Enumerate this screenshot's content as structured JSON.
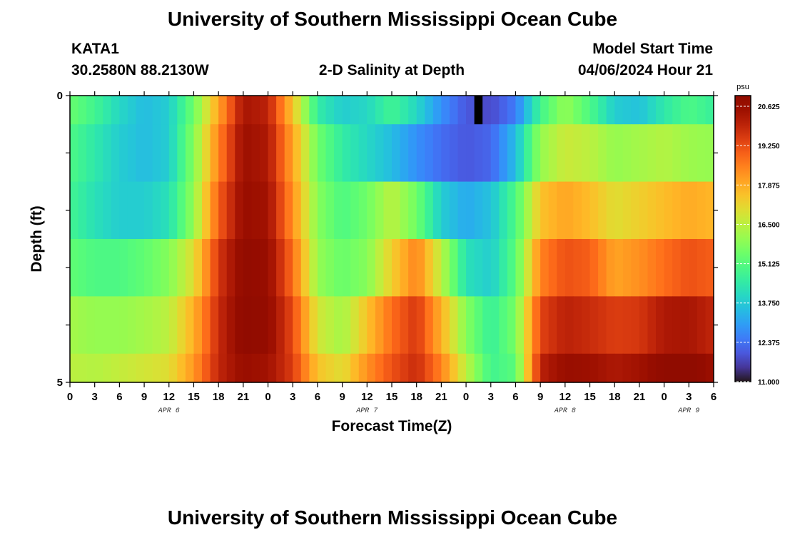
{
  "header": {
    "title": "University of Southern Mississippi Ocean Cube",
    "station": "KATA1",
    "coords": "30.2580N  88.2130W",
    "subtitle": "2-D Salinity at Depth",
    "model_start_label": "Model Start Time",
    "model_start_value": "04/06/2024 Hour 21",
    "footer_title": "University of Southern Mississippi Ocean Cube"
  },
  "chart_data": {
    "type": "heatmap",
    "title": "2-D Salinity at Depth",
    "xlabel": "Forecast Time(Z)",
    "ylabel": "Depth (ft)",
    "x_range": [
      "04/06 00Z",
      "04/09 06Z"
    ],
    "x_ticks": [
      "0",
      "3",
      "6",
      "9",
      "12",
      "15",
      "18",
      "21",
      "0",
      "3",
      "6",
      "9",
      "12",
      "15",
      "18",
      "21",
      "0",
      "3",
      "6",
      "9",
      "12",
      "15",
      "18",
      "21",
      "0",
      "3",
      "6"
    ],
    "date_labels": [
      {
        "label": "APR 6",
        "at_hour": 12
      },
      {
        "label": "APR 7",
        "at_hour": 36
      },
      {
        "label": "APR 8",
        "at_hour": 60
      },
      {
        "label": "APR 9",
        "at_hour": 75
      }
    ],
    "y_range": [
      0,
      5
    ],
    "y_tick_labels": [
      "0",
      "5"
    ],
    "y_minor_ticks": [
      0,
      1,
      2,
      3,
      4,
      5
    ],
    "depth_layers": [
      0,
      1,
      2,
      3,
      4,
      5
    ],
    "colorbar": {
      "unit": "psu",
      "range": [
        11.0,
        21.0
      ],
      "ticks": [
        "20.625",
        "19.250",
        "17.875",
        "16.500",
        "15.125",
        "13.750",
        "12.375",
        "11.000"
      ],
      "colormap": "turbo"
    },
    "time_hours": [
      0,
      3,
      6,
      9,
      12,
      15,
      18,
      21,
      24,
      27,
      30,
      33,
      36,
      39,
      42,
      45,
      48,
      51,
      54,
      57,
      60,
      63,
      66,
      69,
      72,
      75,
      78
    ],
    "series": [
      {
        "depth": 0,
        "values": [
          15.4,
          14.8,
          14.0,
          13.5,
          13.8,
          15.5,
          18.0,
          20.3,
          20.0,
          17.5,
          14.5,
          13.8,
          14.0,
          14.8,
          14.0,
          12.8,
          12.0,
          11.8,
          12.5,
          14.8,
          16.0,
          15.0,
          13.8,
          13.6,
          14.4,
          15.0,
          14.6
        ]
      },
      {
        "depth": 1,
        "values": [
          15.0,
          14.4,
          13.8,
          13.5,
          13.8,
          15.8,
          18.5,
          20.5,
          20.2,
          18.0,
          15.5,
          14.5,
          14.0,
          13.5,
          12.8,
          12.3,
          12.0,
          12.2,
          13.5,
          16.0,
          16.7,
          16.5,
          16.0,
          16.2,
          16.4,
          16.1,
          16.0
        ]
      },
      {
        "depth": 2,
        "values": [
          14.8,
          14.2,
          13.8,
          13.8,
          14.2,
          16.0,
          19.0,
          20.6,
          20.4,
          18.3,
          15.8,
          15.0,
          15.5,
          16.5,
          15.5,
          13.8,
          13.2,
          13.6,
          15.0,
          17.5,
          18.0,
          17.6,
          17.0,
          17.3,
          17.6,
          17.9,
          17.7
        ]
      },
      {
        "depth": 3,
        "values": [
          15.3,
          15.0,
          15.0,
          15.3,
          15.8,
          17.0,
          19.6,
          20.8,
          20.6,
          18.8,
          16.0,
          15.4,
          15.8,
          17.3,
          18.5,
          16.5,
          14.2,
          13.8,
          15.2,
          18.5,
          19.2,
          19.0,
          18.0,
          18.3,
          18.8,
          19.2,
          19.0
        ]
      },
      {
        "depth": 4,
        "values": [
          16.2,
          16.0,
          16.0,
          16.2,
          16.5,
          17.8,
          19.8,
          20.9,
          20.7,
          19.3,
          16.8,
          16.2,
          17.5,
          18.8,
          19.6,
          17.8,
          15.8,
          14.6,
          15.6,
          19.4,
          20.0,
          19.8,
          19.5,
          19.6,
          20.2,
          20.3,
          19.9
        ]
      },
      {
        "depth": 5,
        "values": [
          16.5,
          16.4,
          16.6,
          16.8,
          17.0,
          18.2,
          19.9,
          20.6,
          20.4,
          19.5,
          17.5,
          17.0,
          18.3,
          19.2,
          19.8,
          18.5,
          16.5,
          14.8,
          15.2,
          20.0,
          20.6,
          20.5,
          20.2,
          20.4,
          20.9,
          21.0,
          20.5
        ]
      }
    ],
    "missing": [
      {
        "depth_from": 0,
        "depth_to": 0.5,
        "hour": 49,
        "hour_width": 1
      }
    ],
    "grid": false,
    "legend": "none"
  }
}
